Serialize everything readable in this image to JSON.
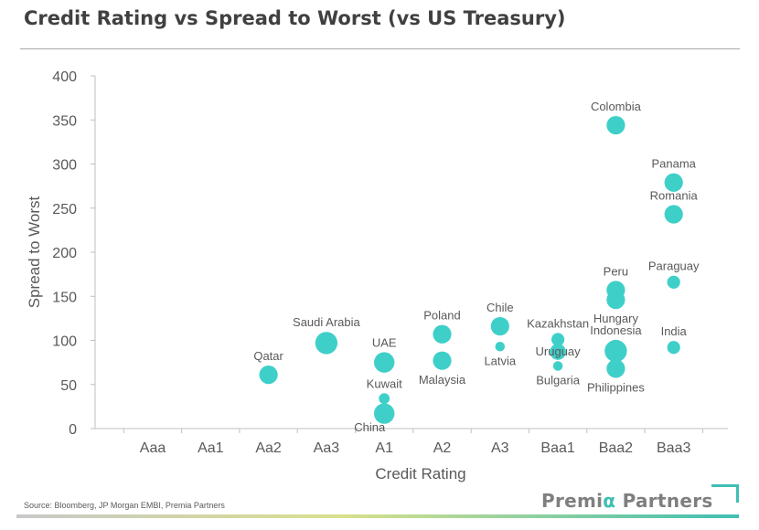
{
  "title": "Credit Rating vs Spread to Worst (vs US Treasury)",
  "source": "Source: Bloomberg, JP Morgan EMBI, Premia Partners",
  "brand": {
    "prefix": "Premi",
    "alpha": "α",
    "suffix": " Partners"
  },
  "colors": {
    "bubble": "#3fcfc9",
    "axis": "#bfbfbf",
    "text": "#595959",
    "accent": "#3fbfb3"
  },
  "chart_data": {
    "type": "scatter",
    "title": "Credit Rating vs Spread to Worst (vs US Treasury)",
    "xlabel": "Credit Rating",
    "ylabel": "Spread to Worst",
    "categories": [
      "Aaa",
      "Aa1",
      "Aa2",
      "Aa3",
      "A1",
      "A2",
      "A3",
      "Baa1",
      "Baa2",
      "Baa3"
    ],
    "ylim": [
      0,
      400
    ],
    "yticks": [
      0,
      50,
      100,
      150,
      200,
      250,
      300,
      350,
      400
    ],
    "grid": false,
    "points": [
      {
        "label": "Qatar",
        "category": "Aa2",
        "y": 61,
        "size": 3,
        "label_pos": "above"
      },
      {
        "label": "Saudi Arabia",
        "category": "Aa3",
        "y": 97,
        "size": 5,
        "label_pos": "above"
      },
      {
        "label": "UAE",
        "category": "A1",
        "y": 75,
        "size": 4,
        "label_pos": "above"
      },
      {
        "label": "Kuwait",
        "category": "A1",
        "y": 34,
        "size": 0.5,
        "label_pos": "above"
      },
      {
        "label": "China",
        "category": "A1",
        "y": 17,
        "size": 4,
        "label_pos": "below-left"
      },
      {
        "label": "Poland",
        "category": "A2",
        "y": 107,
        "size": 3,
        "label_pos": "above"
      },
      {
        "label": "Malaysia",
        "category": "A2",
        "y": 77,
        "size": 3,
        "label_pos": "below"
      },
      {
        "label": "Chile",
        "category": "A3",
        "y": 116,
        "size": 3,
        "label_pos": "above"
      },
      {
        "label": "Latvia",
        "category": "A3",
        "y": 93,
        "size": 0.3,
        "label_pos": "below"
      },
      {
        "label": "Kazakhstan",
        "category": "Baa1",
        "y": 101,
        "size": 1,
        "label_pos": "above"
      },
      {
        "label": "Uruguay",
        "category": "Baa1",
        "y": 87,
        "size": 2,
        "label_pos": "center"
      },
      {
        "label": "Bulgaria",
        "category": "Baa1",
        "y": 71,
        "size": 0.3,
        "label_pos": "below"
      },
      {
        "label": "Colombia",
        "category": "Baa2",
        "y": 344,
        "size": 3,
        "label_pos": "above"
      },
      {
        "label": "Peru",
        "category": "Baa2",
        "y": 157,
        "size": 3,
        "label_pos": "above"
      },
      {
        "label": "Hungary",
        "category": "Baa2",
        "y": 146,
        "size": 3,
        "label_pos": "below"
      },
      {
        "label": "Indonesia",
        "category": "Baa2",
        "y": 88,
        "size": 5,
        "label_pos": "above"
      },
      {
        "label": "Philippines",
        "category": "Baa2",
        "y": 68,
        "size": 3,
        "label_pos": "below"
      },
      {
        "label": "Panama",
        "category": "Baa3",
        "y": 279,
        "size": 3,
        "label_pos": "above"
      },
      {
        "label": "Romania",
        "category": "Baa3",
        "y": 243,
        "size": 3,
        "label_pos": "above"
      },
      {
        "label": "Paraguay",
        "category": "Baa3",
        "y": 166,
        "size": 1,
        "label_pos": "above"
      },
      {
        "label": "India",
        "category": "Baa3",
        "y": 92,
        "size": 1,
        "label_pos": "above"
      }
    ]
  }
}
